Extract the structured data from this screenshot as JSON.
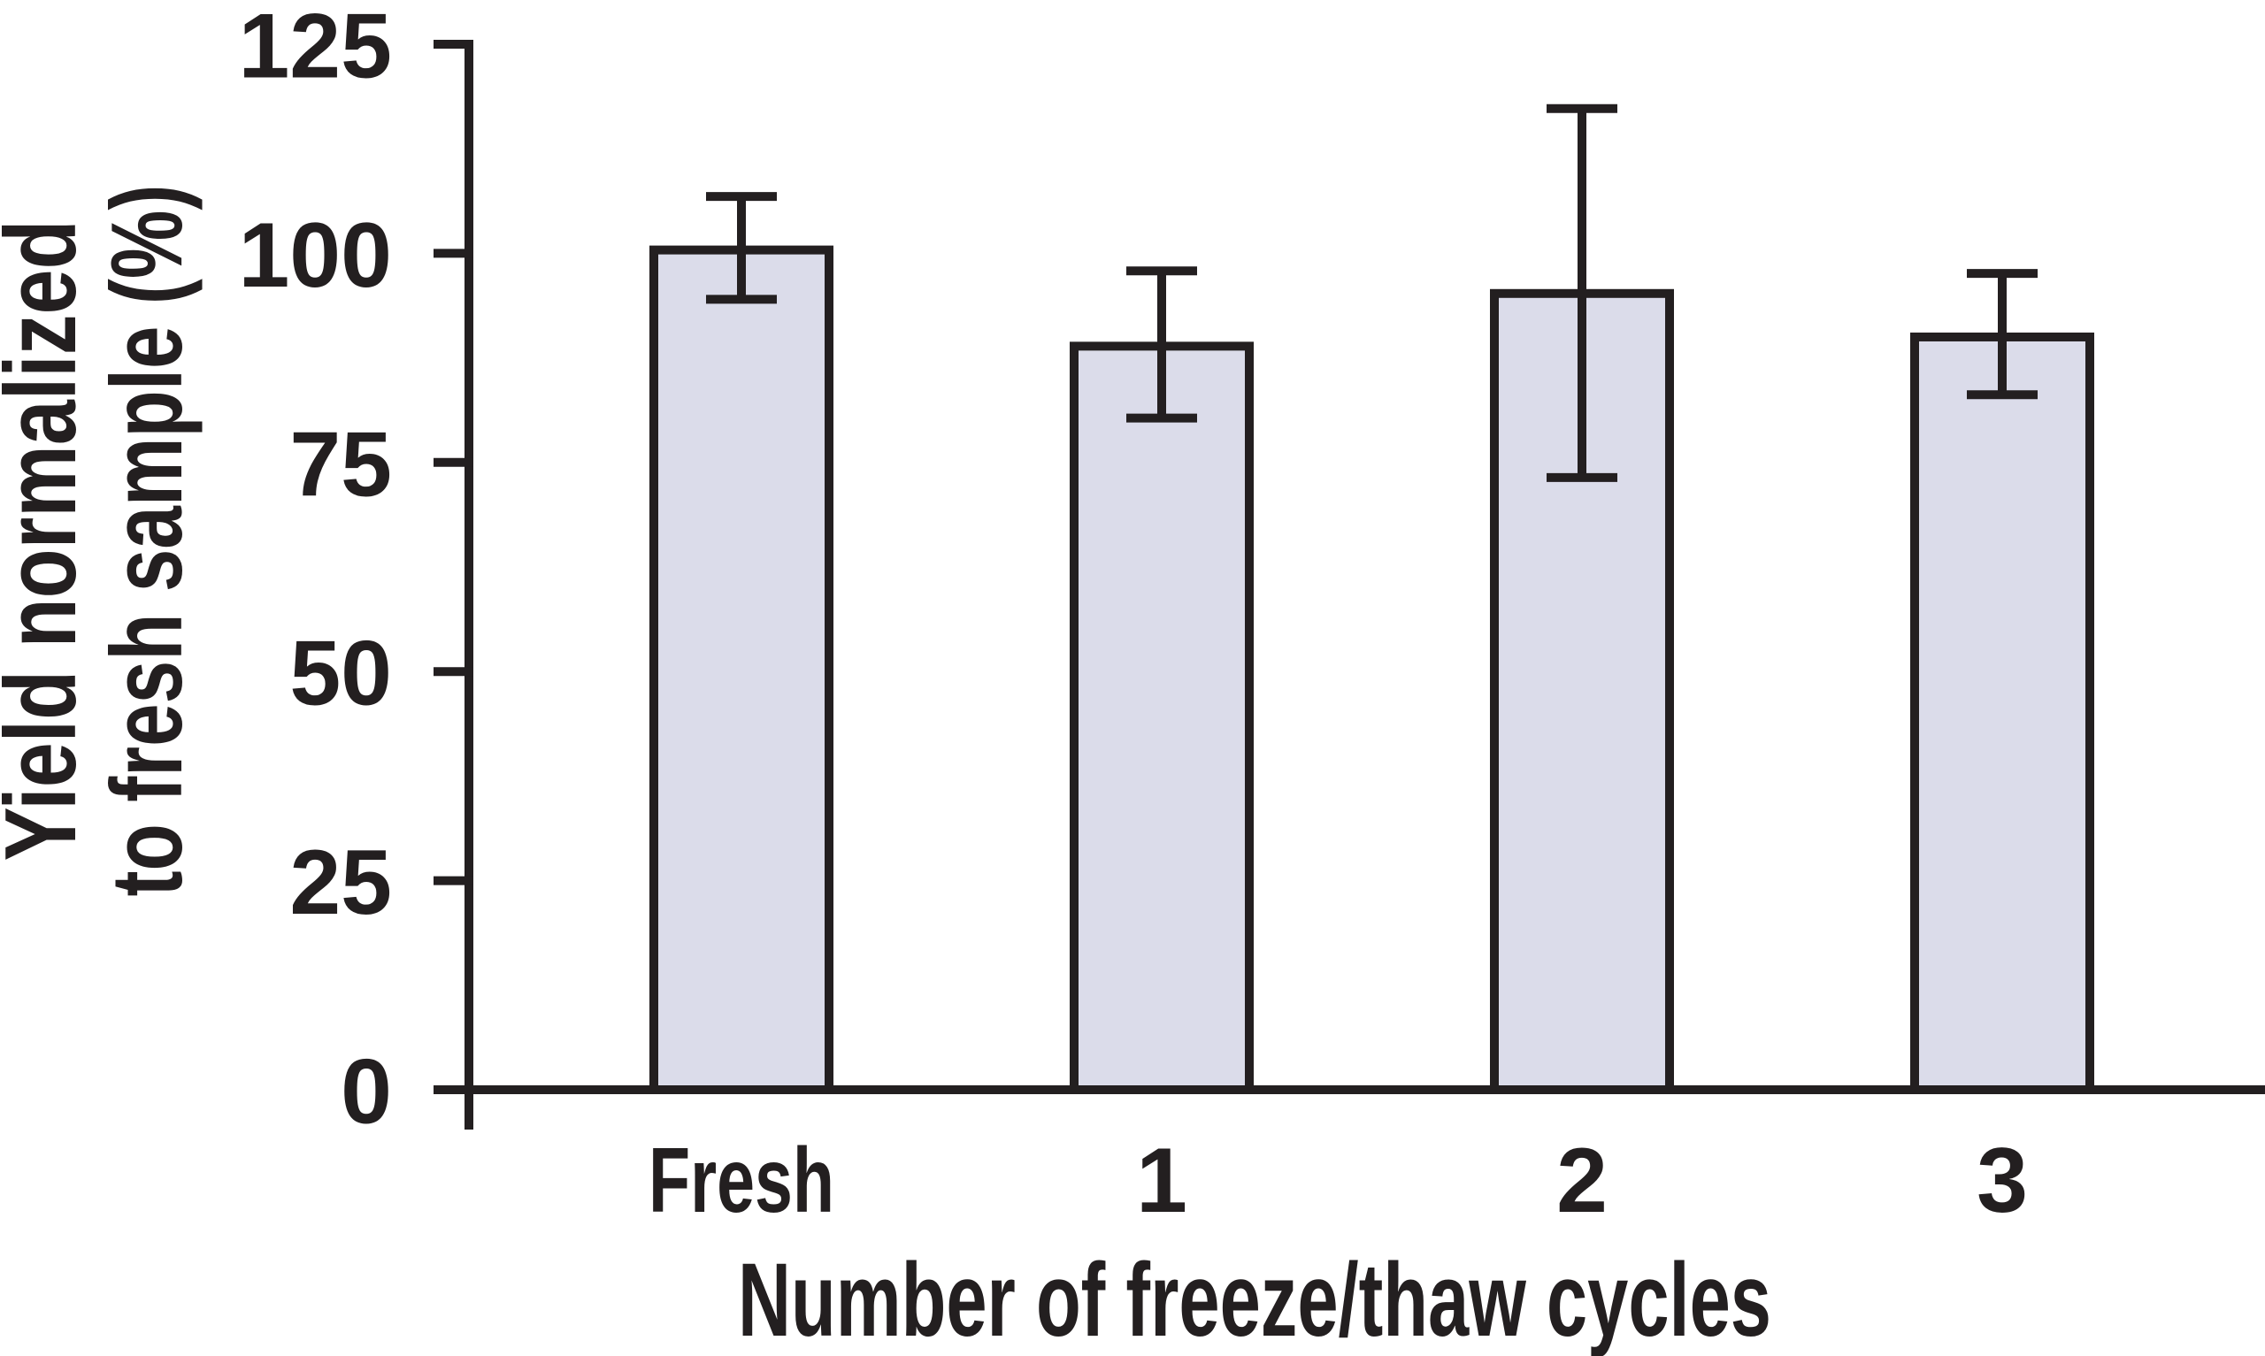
{
  "chart_data": {
    "type": "bar",
    "title": "",
    "xlabel": "Number of freeze/thaw cycles",
    "ylabel_lines": [
      "Yield normalized",
      "to fresh sample (%)"
    ],
    "categories": [
      "Fresh",
      "1",
      "2",
      "3"
    ],
    "values": [
      100.4,
      88.9,
      95.2,
      90.0
    ],
    "error_high": [
      106.8,
      97.9,
      117.3,
      97.6
    ],
    "error_low": [
      94.5,
      80.3,
      73.2,
      83.1
    ],
    "yticks": [
      0,
      25,
      50,
      75,
      100,
      125
    ],
    "ylim": [
      0,
      125
    ],
    "grid": false,
    "legend": false,
    "bar_fill": "#dbdcea",
    "line_color": "#231f20"
  }
}
